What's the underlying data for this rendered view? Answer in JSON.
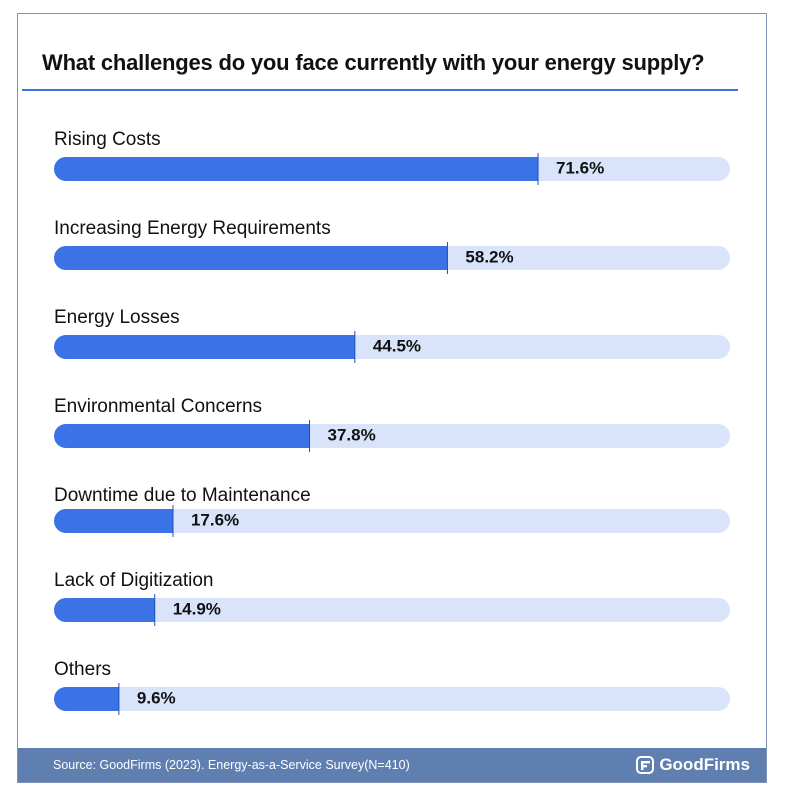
{
  "colors": {
    "bar_fill": "#3b73e6",
    "bar_track": "#d9e4fa",
    "rule": "#3b73e6",
    "footer_bg": "#5f7fb0",
    "border": "#7f93b8"
  },
  "footer": {
    "source": "Source: GoodFirms (2023). Energy-as-a-Service Survey(N=410)",
    "brand": "GoodFirms",
    "brand_icon": "goodfirms-logo-icon"
  },
  "chart_data": {
    "type": "bar",
    "orientation": "horizontal",
    "title": "What challenges do you face currently with your energy supply?",
    "categories": [
      "Rising Costs",
      "Increasing Energy Requirements",
      "Energy Losses",
      "Environmental Concerns",
      "Downtime due to Maintenance",
      "Lack of Digitization",
      "Others"
    ],
    "values": [
      71.6,
      58.2,
      44.5,
      37.8,
      17.6,
      14.9,
      9.6
    ],
    "value_labels": [
      "71.6%",
      "58.2%",
      "44.5%",
      "37.8%",
      "17.6%",
      "14.9%",
      "9.6%"
    ],
    "xlim": [
      0,
      100
    ],
    "grid": false,
    "legend": "none"
  }
}
